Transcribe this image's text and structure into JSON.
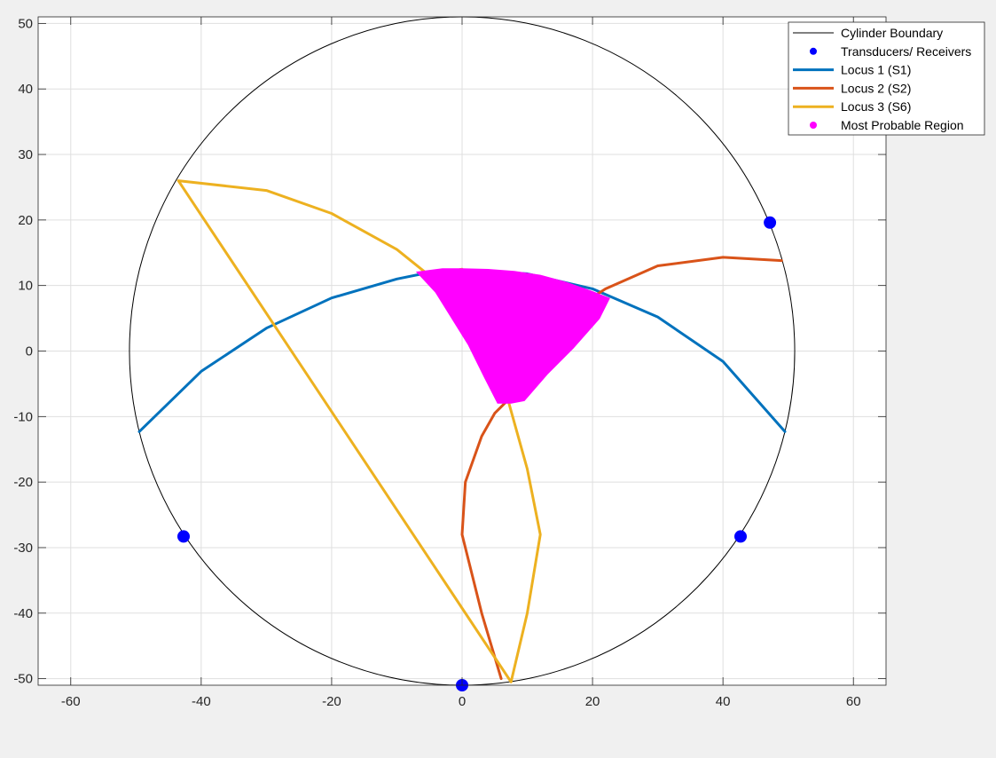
{
  "chart_data": {
    "type": "line",
    "title": "",
    "xlabel": "",
    "ylabel": "",
    "xlim": [
      -65,
      65
    ],
    "ylim": [
      -51,
      51
    ],
    "xticks": [
      -60,
      -40,
      -20,
      0,
      20,
      40,
      60
    ],
    "yticks": [
      50,
      40,
      30,
      20,
      10,
      0,
      -10,
      -20,
      -30,
      -40,
      -50
    ],
    "grid": true,
    "legend_position": "top-right",
    "legend": [
      "Cylinder Boundary",
      "Transducers/ Receivers",
      "Locus 1 (S1)",
      "Locus 2 (S2)",
      "Locus 3 (S6)",
      "Most Probable Region"
    ],
    "colors": {
      "boundary": "#000000",
      "transducers": "#0000ff",
      "locus1": "#0072bd",
      "locus2": "#d95319",
      "locus3": "#edb120",
      "region": "#ff00ff",
      "grid": "#dfdfdf",
      "axes_bg": "#ffffff",
      "figure_bg": "#f0f0f0"
    },
    "series": [
      {
        "name": "Cylinder Boundary",
        "kind": "circle",
        "center": [
          0,
          0
        ],
        "radius": 51
      },
      {
        "name": "Transducers/ Receivers",
        "kind": "points",
        "x": [
          47.2,
          42.7,
          0,
          -42.7
        ],
        "y": [
          19.6,
          -28.3,
          -51,
          -28.3
        ]
      },
      {
        "name": "Locus 1 (S1)",
        "kind": "line",
        "x": [
          -49.5,
          -40,
          -30,
          -20,
          -10,
          -6,
          0,
          10,
          20,
          30,
          40,
          49.5
        ],
        "y": [
          -12.3,
          -3.1,
          3.5,
          8.1,
          11.0,
          11.8,
          12.3,
          11.8,
          9.5,
          5.2,
          -1.6,
          -12.3
        ]
      },
      {
        "name": "Locus 2 (S2)",
        "kind": "line",
        "x": [
          6,
          3,
          0,
          0.5,
          3,
          5,
          7,
          10,
          15,
          22,
          30,
          40,
          49
        ],
        "y": [
          -50,
          -40,
          -28,
          -20,
          -13,
          -9.5,
          -7.5,
          0,
          5,
          9.5,
          13,
          14.3,
          13.8
        ]
      },
      {
        "name": "Locus 3 (S6)",
        "kind": "line",
        "x": [
          7.5,
          -43.5,
          -30,
          -20,
          -10,
          -5,
          0,
          5,
          7.2,
          10,
          12,
          10,
          7.5
        ],
        "y": [
          -50.5,
          26,
          24.5,
          21,
          15.5,
          11.5,
          12.5,
          5,
          -8,
          -18,
          -28,
          -40,
          -50.5
        ]
      },
      {
        "name": "Most Probable Region",
        "kind": "region",
        "x": [
          -6.8,
          -3,
          0,
          4,
          8,
          12,
          16,
          20,
          22.5,
          21,
          17,
          13,
          9.5,
          7.5,
          5.5,
          3.5,
          1,
          -1.5,
          -4,
          -6.8
        ],
        "y": [
          12.0,
          12.5,
          12.5,
          12.4,
          12.1,
          11.5,
          10.4,
          9.0,
          8.0,
          5.0,
          0.5,
          -3.5,
          -7.5,
          -7.9,
          -7.9,
          -4.0,
          1.0,
          5.0,
          9.0,
          12.0
        ]
      }
    ]
  }
}
